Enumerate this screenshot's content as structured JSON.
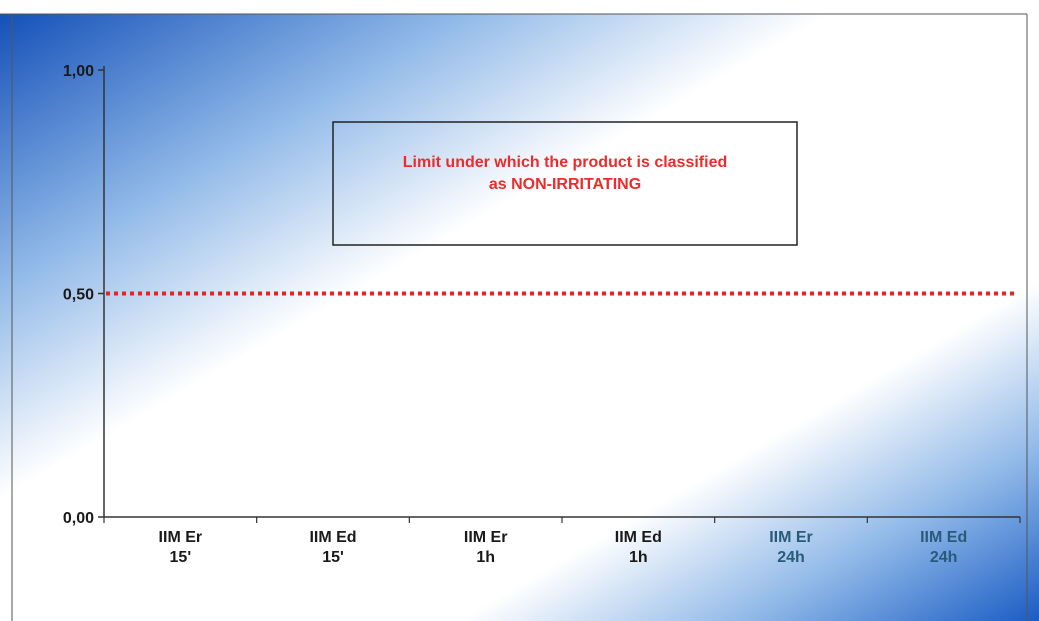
{
  "chart_data": {
    "type": "line",
    "title": "",
    "xlabel": "",
    "ylabel": "",
    "categories": [
      [
        "IIM Er",
        "15'"
      ],
      [
        "IIM Ed",
        "15'"
      ],
      [
        "IIM Er",
        "1h"
      ],
      [
        "IIM Ed",
        "1h"
      ],
      [
        "IIM Er",
        "24h"
      ],
      [
        "IIM Ed",
        "24h"
      ]
    ],
    "ylim": [
      0,
      1
    ],
    "yticks": [
      {
        "value": 0,
        "label": "0,00"
      },
      {
        "value": 0.5,
        "label": "0,50"
      },
      {
        "value": 1,
        "label": "1,00"
      }
    ],
    "series": [],
    "reference_line": {
      "value": 0.5,
      "style": "dotted",
      "color": "#e8241f"
    },
    "annotation": {
      "lines": [
        "Limit under which the product is classified",
        "as NON-IRRITATING"
      ],
      "color": "#ee2a2a"
    },
    "grid": false,
    "legend": "none",
    "colors": {
      "background_blue": "#1f5fbf",
      "axis": "#333333",
      "label_dark": "#1a1a1a",
      "label_light": "#2a5a7a"
    }
  }
}
